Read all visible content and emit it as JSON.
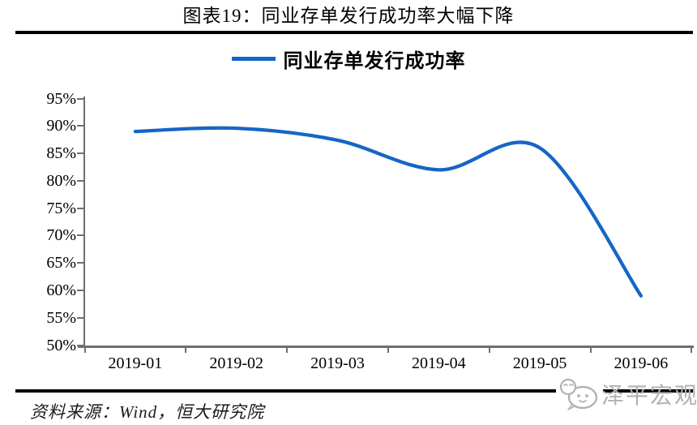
{
  "header": {
    "title": "图表19：同业存单发行成功率大幅下降"
  },
  "legend": {
    "label": "同业存单发行成功率"
  },
  "footer": {
    "source": "资料来源：Wind，恒大研究院",
    "watermark": "泽平宏观"
  },
  "colors": {
    "line": "#1566C4",
    "axis": "#6f6f6f",
    "rule": "#000000",
    "watermark_gray": "#b2b2b2"
  },
  "chart_data": {
    "type": "line",
    "title": "图表19：同业存单发行成功率大幅下降",
    "categories": [
      "2019-01",
      "2019-02",
      "2019-03",
      "2019-04",
      "2019-05",
      "2019-06"
    ],
    "series": [
      {
        "name": "同业存单发行成功率",
        "values": [
          89.0,
          89.6,
          87.4,
          82.0,
          86.0,
          59.0
        ]
      }
    ],
    "unit": "%",
    "ylim": [
      50,
      95
    ],
    "y_tick_step": 5,
    "y_tick_labels": [
      "95%",
      "90%",
      "85%",
      "80%",
      "75%",
      "70%",
      "65%",
      "60%",
      "55%",
      "50%"
    ],
    "grid": false,
    "legend_position": "top",
    "line_style": "smooth"
  }
}
